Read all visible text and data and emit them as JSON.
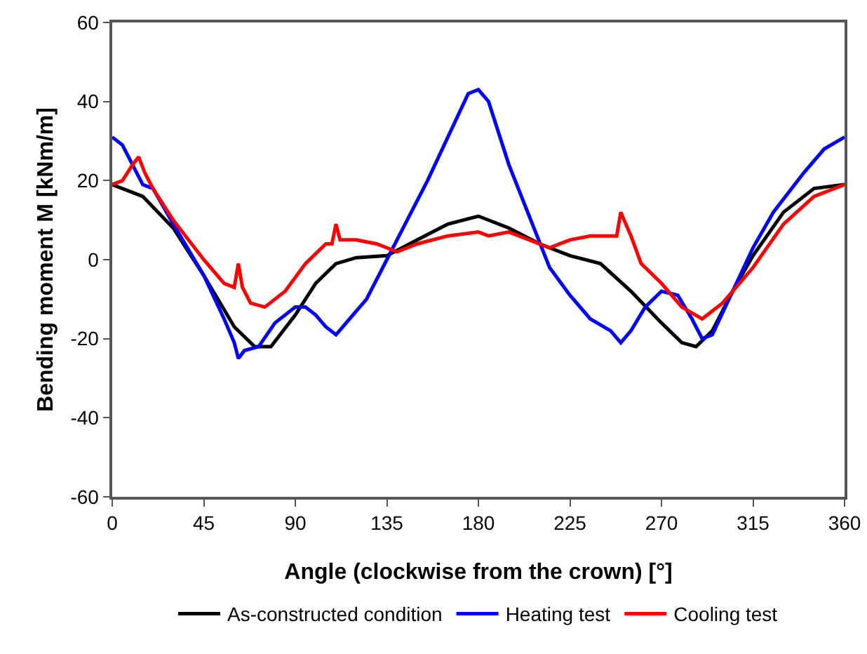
{
  "chart_data": {
    "type": "line",
    "xlabel": "Angle (clockwise from the crown) [°]",
    "ylabel": "Bending moment M [kNm/m]",
    "xlim": [
      0,
      360
    ],
    "xticks": [
      0,
      45,
      90,
      135,
      180,
      225,
      270,
      315,
      360
    ],
    "ylim": [
      -60,
      60
    ],
    "yticks": [
      -60,
      -40,
      -20,
      0,
      20,
      40,
      60
    ],
    "grid": false,
    "legend": "bottom",
    "marker": "none",
    "line_style": "solid",
    "series": [
      {
        "name": "As-constructed condition",
        "color": "#000000",
        "x": [
          0,
          15,
          30,
          45,
          60,
          70,
          78,
          90,
          100,
          110,
          120,
          135,
          150,
          165,
          180,
          195,
          210,
          225,
          240,
          255,
          270,
          280,
          287,
          295,
          305,
          315,
          330,
          345,
          360
        ],
        "values": [
          19,
          16,
          8,
          -4,
          -17,
          -22,
          -22,
          -14,
          -6,
          -1,
          0.5,
          1,
          5,
          9,
          11,
          8,
          4,
          1,
          -1,
          -8,
          -16,
          -21,
          -22,
          -18,
          -8,
          1,
          12,
          18,
          19
        ]
      },
      {
        "name": "Heating test",
        "color": "#0000ff",
        "x": [
          0,
          5,
          10,
          15,
          20,
          30,
          45,
          55,
          60,
          62,
          65,
          72,
          80,
          90,
          95,
          100,
          105,
          110,
          115,
          125,
          135,
          145,
          155,
          165,
          175,
          180,
          185,
          195,
          205,
          215,
          225,
          235,
          245,
          250,
          255,
          262,
          270,
          278,
          285,
          290,
          295,
          305,
          315,
          325,
          340,
          350,
          360
        ],
        "values": [
          31,
          29,
          24,
          19,
          18,
          9,
          -4,
          -15,
          -21,
          -25,
          -23,
          -22,
          -16,
          -12,
          -12,
          -14,
          -17,
          -19,
          -16,
          -10,
          0,
          10,
          20,
          31,
          42,
          43,
          40,
          24,
          11,
          -2,
          -9,
          -15,
          -18,
          -21,
          -18,
          -12,
          -8,
          -9,
          -15,
          -20,
          -19,
          -8,
          3,
          12,
          22,
          28,
          31
        ]
      },
      {
        "name": "Cooling test",
        "color": "#ff0000",
        "x": [
          0,
          5,
          10,
          13,
          16,
          20,
          30,
          45,
          55,
          60,
          62,
          64,
          68,
          75,
          85,
          95,
          105,
          108,
          110,
          112,
          120,
          130,
          140,
          150,
          165,
          180,
          185,
          195,
          205,
          215,
          225,
          235,
          245,
          248,
          250,
          255,
          260,
          270,
          280,
          290,
          300,
          315,
          330,
          345,
          360
        ],
        "values": [
          19,
          20,
          24,
          26,
          22,
          18,
          10,
          0,
          -6,
          -7,
          -1,
          -7,
          -11,
          -12,
          -8,
          -1,
          4,
          4,
          9,
          5,
          5,
          4,
          2,
          4,
          6,
          7,
          6,
          7,
          5,
          3,
          5,
          6,
          6,
          6,
          12,
          6,
          -1,
          -6,
          -12,
          -15,
          -11,
          -2,
          9,
          16,
          19
        ]
      }
    ]
  }
}
